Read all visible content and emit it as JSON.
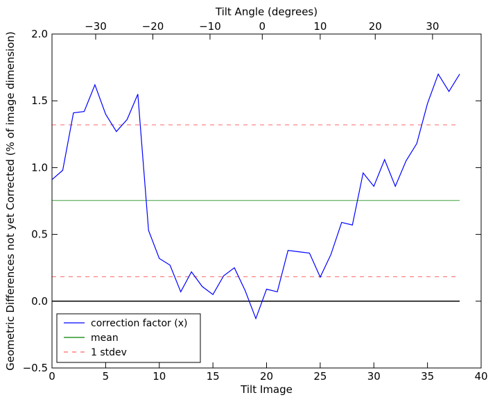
{
  "chart_data": {
    "type": "line",
    "xlabel": "Tilt Image",
    "ylabel": "Geometric Differences not yet Corrected (% of image dimension)",
    "x2label": "Tilt Angle (degrees)",
    "xlim": [
      0,
      40
    ],
    "ylim": [
      -0.5,
      2.0
    ],
    "x_ticks": [
      0,
      5,
      10,
      15,
      20,
      25,
      30,
      35,
      40
    ],
    "x_tick_labels": [
      "0",
      "5",
      "10",
      "15",
      "20",
      "25",
      "30",
      "35",
      "40"
    ],
    "y_ticks": [
      -0.5,
      0.0,
      0.5,
      1.0,
      1.5,
      2.0
    ],
    "y_tick_labels": [
      "−0.5",
      "0.0",
      "0.5",
      "1.0",
      "1.5",
      "2.0"
    ],
    "top_ticks": [
      {
        "label": "−30",
        "at": 4.07
      },
      {
        "label": "−20",
        "at": 9.4
      },
      {
        "label": "−10",
        "at": 14.73
      },
      {
        "label": "0",
        "at": 19.6
      },
      {
        "label": "10",
        "at": 25.0
      },
      {
        "label": "20",
        "at": 30.13
      },
      {
        "label": "30",
        "at": 35.47
      }
    ],
    "x": [
      0,
      1,
      2,
      3,
      4,
      5,
      6,
      7,
      8,
      9,
      10,
      11,
      12,
      13,
      14,
      15,
      16,
      17,
      18,
      19,
      20,
      21,
      22,
      23,
      24,
      25,
      26,
      27,
      28,
      29,
      30,
      31,
      32,
      33,
      34,
      35,
      36,
      37,
      38
    ],
    "series": [
      {
        "name": "correction factor (x)",
        "color": "#0000ff",
        "style": "solid",
        "values": [
          0.91,
          0.98,
          1.41,
          1.42,
          1.62,
          1.4,
          1.27,
          1.36,
          1.55,
          0.53,
          0.32,
          0.27,
          0.07,
          0.22,
          0.11,
          0.05,
          0.19,
          0.25,
          0.08,
          -0.13,
          0.09,
          0.07,
          0.38,
          0.37,
          0.36,
          0.18,
          0.35,
          0.59,
          0.57,
          0.96,
          0.86,
          1.06,
          0.86,
          1.05,
          1.18,
          1.48,
          1.7,
          1.57,
          1.7
        ]
      }
    ],
    "reference_lines": [
      {
        "name": "mean",
        "y": 0.754,
        "x_range": [
          0,
          38
        ],
        "color": "#008000",
        "style": "solid"
      },
      {
        "name": "1 stdev",
        "y": 1.32,
        "x_range": [
          0,
          38
        ],
        "color": "#ff0000",
        "style": "dashed"
      },
      {
        "name": "",
        "y": 0.183,
        "x_range": [
          0,
          38
        ],
        "color": "#ff0000",
        "style": "dashed"
      },
      {
        "name": "",
        "y": 0.0,
        "x_range": [
          0,
          38
        ],
        "color": "#000000",
        "style": "solid"
      }
    ],
    "legend": {
      "position": "lower-left",
      "entries": [
        {
          "label": "correction factor (x)",
          "color": "#0000ff",
          "style": "solid"
        },
        {
          "label": "mean",
          "color": "#008000",
          "style": "solid"
        },
        {
          "label": "1 stdev",
          "color": "#ff0000",
          "style": "dashed"
        }
      ]
    },
    "grid": false
  }
}
